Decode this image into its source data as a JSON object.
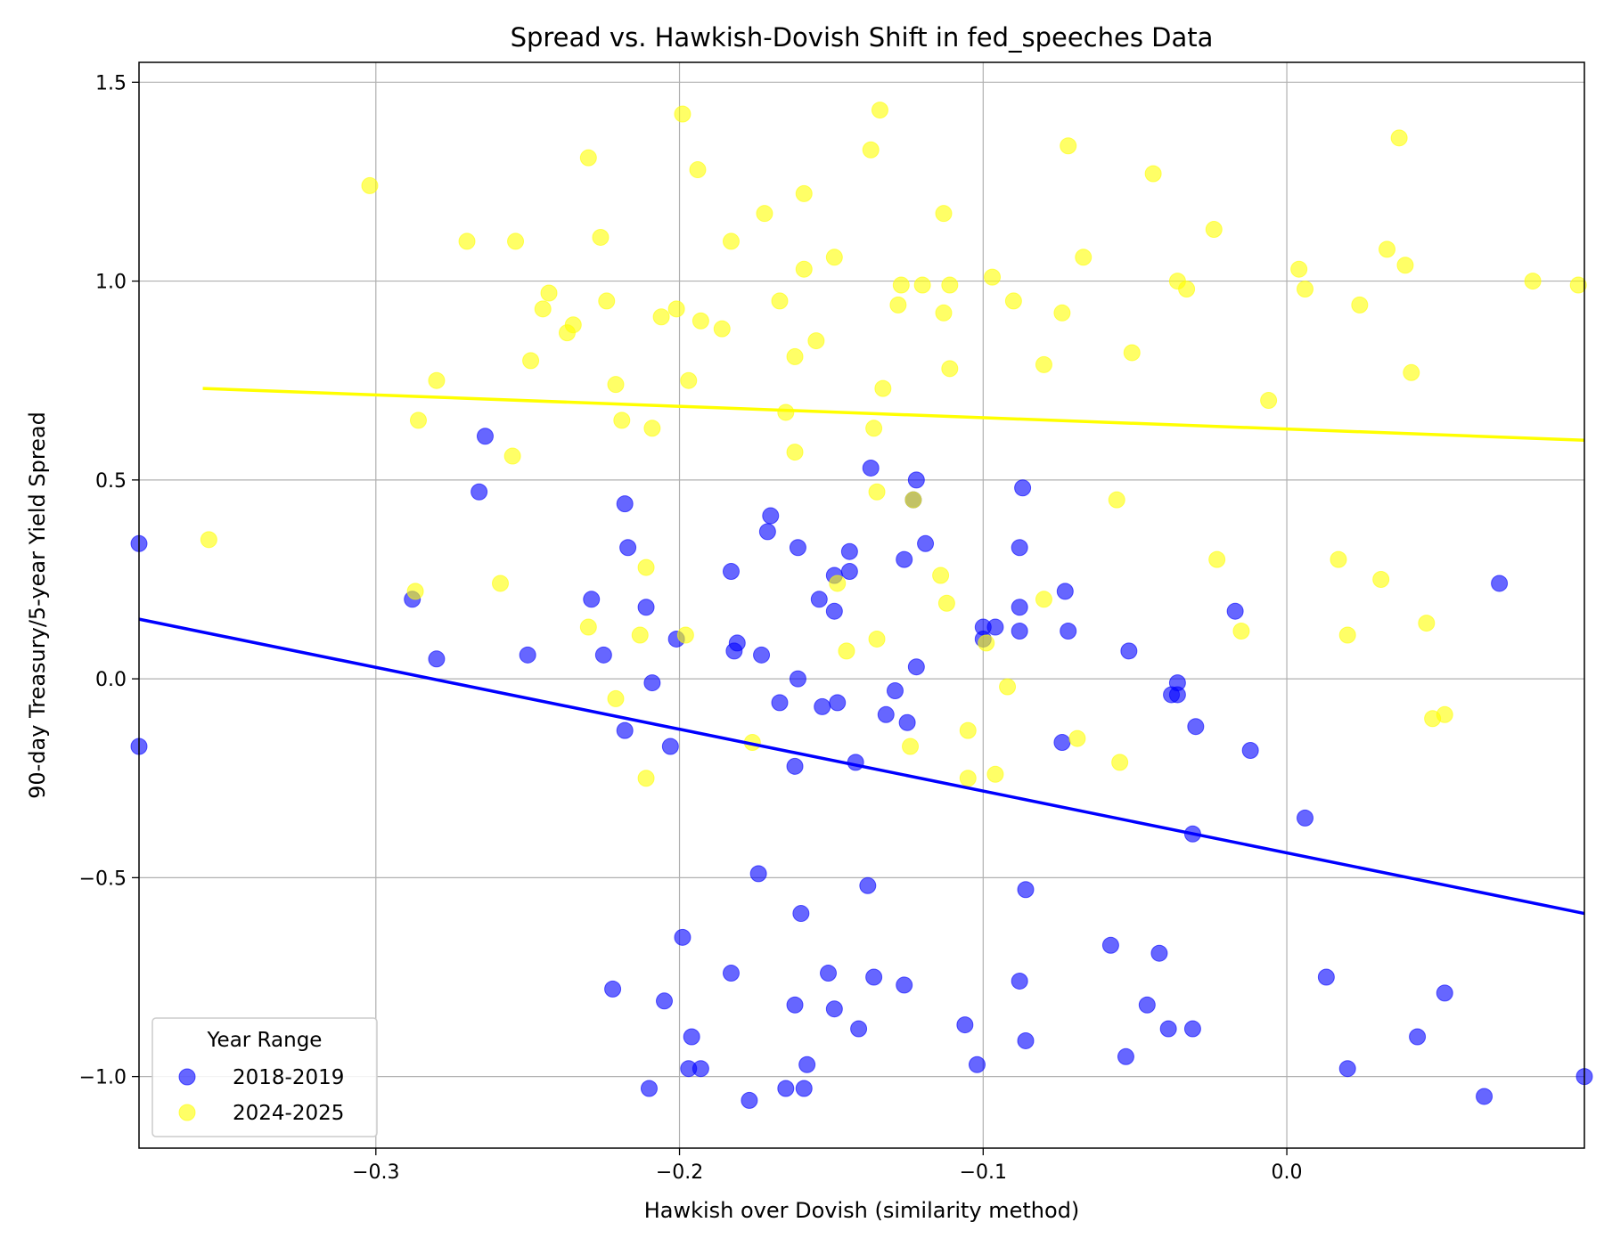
{
  "chart_data": {
    "type": "scatter",
    "title": "Spread vs. Hawkish-Dovish Shift in fed_speeches Data",
    "xlabel": "Hawkish over Dovish (similarity method)",
    "ylabel": "90-day Treasury/5-year Yield Spread",
    "xlim": [
      -0.378,
      0.098
    ],
    "ylim": [
      -1.18,
      1.55
    ],
    "x_ticks": [
      -0.3,
      -0.2,
      -0.1,
      0.0
    ],
    "x_tick_labels": [
      "−0.3",
      "−0.2",
      "−0.1",
      "0.0"
    ],
    "y_ticks": [
      -1.0,
      -0.5,
      0.0,
      0.5,
      1.0,
      1.5
    ],
    "y_tick_labels": [
      "−1.0",
      "−0.5",
      "0.0",
      "0.5",
      "1.0",
      "1.5"
    ],
    "grid": true,
    "legend": {
      "title": "Year Range",
      "position": "lower-left"
    },
    "series": [
      {
        "name": "2018-2019",
        "color": "#0000ff",
        "opacity": 0.6,
        "points": [
          [
            -0.378,
            0.34
          ],
          [
            -0.378,
            -0.17
          ],
          [
            -0.288,
            0.2
          ],
          [
            -0.28,
            0.05
          ],
          [
            -0.266,
            0.47
          ],
          [
            -0.264,
            0.61
          ],
          [
            -0.25,
            0.06
          ],
          [
            -0.229,
            0.2
          ],
          [
            -0.225,
            0.06
          ],
          [
            -0.222,
            -0.78
          ],
          [
            -0.218,
            0.44
          ],
          [
            -0.218,
            -0.13
          ],
          [
            -0.217,
            0.33
          ],
          [
            -0.211,
            0.18
          ],
          [
            -0.21,
            -1.03
          ],
          [
            -0.209,
            -0.01
          ],
          [
            -0.205,
            -0.81
          ],
          [
            -0.203,
            -0.17
          ],
          [
            -0.201,
            0.1
          ],
          [
            -0.199,
            -0.65
          ],
          [
            -0.197,
            -0.98
          ],
          [
            -0.196,
            -0.9
          ],
          [
            -0.193,
            -0.98
          ],
          [
            -0.183,
            0.27
          ],
          [
            -0.183,
            -0.74
          ],
          [
            -0.182,
            0.07
          ],
          [
            -0.181,
            0.09
          ],
          [
            -0.177,
            -1.06
          ],
          [
            -0.174,
            -0.49
          ],
          [
            -0.173,
            0.06
          ],
          [
            -0.171,
            0.37
          ],
          [
            -0.17,
            0.41
          ],
          [
            -0.167,
            -0.06
          ],
          [
            -0.165,
            -1.03
          ],
          [
            -0.162,
            -0.82
          ],
          [
            -0.162,
            -0.22
          ],
          [
            -0.161,
            0.0
          ],
          [
            -0.161,
            0.33
          ],
          [
            -0.16,
            -0.59
          ],
          [
            -0.159,
            -1.03
          ],
          [
            -0.158,
            -0.97
          ],
          [
            -0.154,
            0.2
          ],
          [
            -0.153,
            -0.07
          ],
          [
            -0.151,
            -0.74
          ],
          [
            -0.149,
            0.26
          ],
          [
            -0.149,
            0.17
          ],
          [
            -0.149,
            -0.83
          ],
          [
            -0.148,
            -0.06
          ],
          [
            -0.144,
            0.32
          ],
          [
            -0.144,
            0.27
          ],
          [
            -0.142,
            -0.21
          ],
          [
            -0.141,
            -0.88
          ],
          [
            -0.138,
            -0.52
          ],
          [
            -0.137,
            0.53
          ],
          [
            -0.136,
            -0.75
          ],
          [
            -0.132,
            -0.09
          ],
          [
            -0.129,
            -0.03
          ],
          [
            -0.126,
            0.3
          ],
          [
            -0.126,
            -0.77
          ],
          [
            -0.125,
            -0.11
          ],
          [
            -0.123,
            0.45
          ],
          [
            -0.122,
            0.5
          ],
          [
            -0.122,
            0.03
          ],
          [
            -0.119,
            0.34
          ],
          [
            -0.106,
            -0.87
          ],
          [
            -0.102,
            -0.97
          ],
          [
            -0.1,
            0.13
          ],
          [
            -0.1,
            0.1
          ],
          [
            -0.096,
            0.13
          ],
          [
            -0.088,
            0.33
          ],
          [
            -0.088,
            0.18
          ],
          [
            -0.088,
            0.12
          ],
          [
            -0.088,
            -0.76
          ],
          [
            -0.087,
            0.48
          ],
          [
            -0.086,
            -0.53
          ],
          [
            -0.086,
            -0.91
          ],
          [
            -0.074,
            -0.16
          ],
          [
            -0.073,
            0.22
          ],
          [
            -0.072,
            0.12
          ],
          [
            -0.058,
            -0.67
          ],
          [
            -0.053,
            -0.95
          ],
          [
            -0.052,
            0.07
          ],
          [
            -0.046,
            -0.82
          ],
          [
            -0.042,
            -0.69
          ],
          [
            -0.039,
            -0.88
          ],
          [
            -0.038,
            -0.04
          ],
          [
            -0.036,
            -0.04
          ],
          [
            -0.036,
            -0.01
          ],
          [
            -0.031,
            -0.39
          ],
          [
            -0.031,
            -0.88
          ],
          [
            -0.03,
            -0.12
          ],
          [
            -0.017,
            0.17
          ],
          [
            -0.012,
            -0.18
          ],
          [
            0.006,
            -0.35
          ],
          [
            0.02,
            -0.98
          ],
          [
            0.013,
            -0.75
          ],
          [
            0.043,
            -0.9
          ],
          [
            0.052,
            -0.79
          ],
          [
            0.065,
            -1.05
          ],
          [
            0.07,
            0.24
          ],
          [
            0.098,
            -1.0
          ]
        ],
        "fit": {
          "x": [
            -0.378,
            0.098
          ],
          "y": [
            0.15,
            -0.59
          ]
        }
      },
      {
        "name": "2024-2025",
        "color": "#ffff00",
        "opacity": 0.6,
        "points": [
          [
            -0.355,
            0.35
          ],
          [
            -0.302,
            1.24
          ],
          [
            -0.287,
            0.22
          ],
          [
            -0.286,
            0.65
          ],
          [
            -0.28,
            0.75
          ],
          [
            -0.27,
            1.1
          ],
          [
            -0.259,
            0.24
          ],
          [
            -0.255,
            0.56
          ],
          [
            -0.254,
            1.1
          ],
          [
            -0.249,
            0.8
          ],
          [
            -0.245,
            0.93
          ],
          [
            -0.243,
            0.97
          ],
          [
            -0.237,
            0.87
          ],
          [
            -0.235,
            0.89
          ],
          [
            -0.23,
            1.31
          ],
          [
            -0.23,
            0.13
          ],
          [
            -0.226,
            1.11
          ],
          [
            -0.224,
            0.95
          ],
          [
            -0.221,
            0.74
          ],
          [
            -0.221,
            -0.05
          ],
          [
            -0.219,
            0.65
          ],
          [
            -0.213,
            0.11
          ],
          [
            -0.211,
            0.28
          ],
          [
            -0.211,
            -0.25
          ],
          [
            -0.209,
            0.63
          ],
          [
            -0.206,
            0.91
          ],
          [
            -0.201,
            0.93
          ],
          [
            -0.199,
            1.42
          ],
          [
            -0.198,
            0.11
          ],
          [
            -0.197,
            0.75
          ],
          [
            -0.194,
            1.28
          ],
          [
            -0.193,
            0.9
          ],
          [
            -0.186,
            0.88
          ],
          [
            -0.183,
            1.1
          ],
          [
            -0.176,
            -0.16
          ],
          [
            -0.172,
            1.17
          ],
          [
            -0.167,
            0.95
          ],
          [
            -0.165,
            0.67
          ],
          [
            -0.162,
            0.81
          ],
          [
            -0.162,
            0.57
          ],
          [
            -0.159,
            1.03
          ],
          [
            -0.159,
            1.22
          ],
          [
            -0.155,
            0.85
          ],
          [
            -0.149,
            1.06
          ],
          [
            -0.148,
            0.24
          ],
          [
            -0.145,
            0.07
          ],
          [
            -0.137,
            1.33
          ],
          [
            -0.136,
            0.63
          ],
          [
            -0.135,
            0.1
          ],
          [
            -0.135,
            0.47
          ],
          [
            -0.134,
            1.43
          ],
          [
            -0.133,
            0.73
          ],
          [
            -0.128,
            0.94
          ],
          [
            -0.127,
            0.99
          ],
          [
            -0.124,
            -0.17
          ],
          [
            -0.123,
            0.45
          ],
          [
            -0.12,
            0.99
          ],
          [
            -0.114,
            0.26
          ],
          [
            -0.113,
            1.17
          ],
          [
            -0.113,
            0.92
          ],
          [
            -0.112,
            0.19
          ],
          [
            -0.111,
            0.78
          ],
          [
            -0.111,
            0.99
          ],
          [
            -0.105,
            -0.13
          ],
          [
            -0.105,
            -0.25
          ],
          [
            -0.099,
            0.09
          ],
          [
            -0.097,
            1.01
          ],
          [
            -0.096,
            -0.24
          ],
          [
            -0.092,
            -0.02
          ],
          [
            -0.09,
            0.95
          ],
          [
            -0.08,
            0.79
          ],
          [
            -0.08,
            0.2
          ],
          [
            -0.074,
            0.92
          ],
          [
            -0.072,
            1.34
          ],
          [
            -0.069,
            -0.15
          ],
          [
            -0.067,
            1.06
          ],
          [
            -0.056,
            0.45
          ],
          [
            -0.055,
            -0.21
          ],
          [
            -0.051,
            0.82
          ],
          [
            -0.044,
            1.27
          ],
          [
            -0.036,
            1.0
          ],
          [
            -0.033,
            0.98
          ],
          [
            -0.024,
            1.13
          ],
          [
            -0.023,
            0.3
          ],
          [
            -0.015,
            0.12
          ],
          [
            -0.006,
            0.7
          ],
          [
            0.004,
            1.03
          ],
          [
            0.006,
            0.98
          ],
          [
            0.017,
            0.3
          ],
          [
            0.02,
            0.11
          ],
          [
            0.024,
            0.94
          ],
          [
            0.031,
            0.25
          ],
          [
            0.033,
            1.08
          ],
          [
            0.037,
            1.36
          ],
          [
            0.039,
            1.04
          ],
          [
            0.041,
            0.77
          ],
          [
            0.046,
            0.14
          ],
          [
            0.048,
            -0.1
          ],
          [
            0.052,
            -0.09
          ],
          [
            0.081,
            1.0
          ],
          [
            0.096,
            0.99
          ]
        ],
        "fit": {
          "x": [
            -0.357,
            0.098
          ],
          "y": [
            0.73,
            0.6
          ]
        }
      }
    ]
  }
}
